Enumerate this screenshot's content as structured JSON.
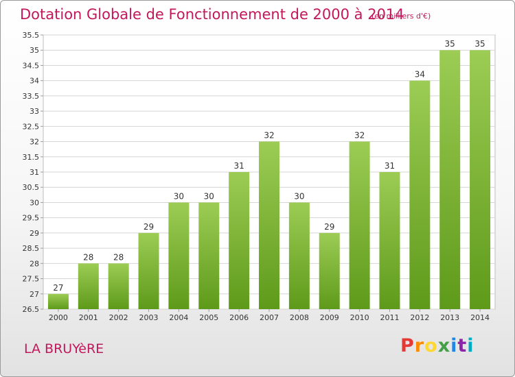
{
  "header": {
    "title": "Dotation Globale de Fonctionnement de 2000 à 2014",
    "subtitle": "(en milliers d'€)"
  },
  "footer": {
    "commune": "LA BRUYèRE",
    "logo": "Proxiti",
    "logo_colors": [
      "#e53935",
      "#fb8c00",
      "#fdd835",
      "#43a047",
      "#1e88e5",
      "#8e24aa",
      "#00acc1"
    ]
  },
  "colors": {
    "accent": "#c2185b",
    "bar_top": "#9ccc54",
    "bar_bottom": "#5e9a1a",
    "grid": "#d4d4d4"
  },
  "chart_data": {
    "type": "bar",
    "title": "Dotation Globale de Fonctionnement de 2000 à 2014",
    "subtitle": "(en milliers d'€)",
    "categories": [
      "2000",
      "2001",
      "2002",
      "2003",
      "2004",
      "2005",
      "2006",
      "2007",
      "2008",
      "2009",
      "2010",
      "2011",
      "2012",
      "2013",
      "2014"
    ],
    "values": [
      27,
      28,
      28,
      29,
      30,
      30,
      31,
      32,
      30,
      29,
      32,
      31,
      34,
      35,
      35
    ],
    "ylim": [
      26.5,
      35.5
    ],
    "yticks": [
      26.5,
      27,
      27.5,
      28,
      28.5,
      29,
      29.5,
      30,
      30.5,
      31,
      31.5,
      32,
      32.5,
      33,
      33.5,
      34,
      34.5,
      35,
      35.5
    ],
    "grid": true,
    "data_labels": true,
    "xlabel": "",
    "ylabel": ""
  }
}
